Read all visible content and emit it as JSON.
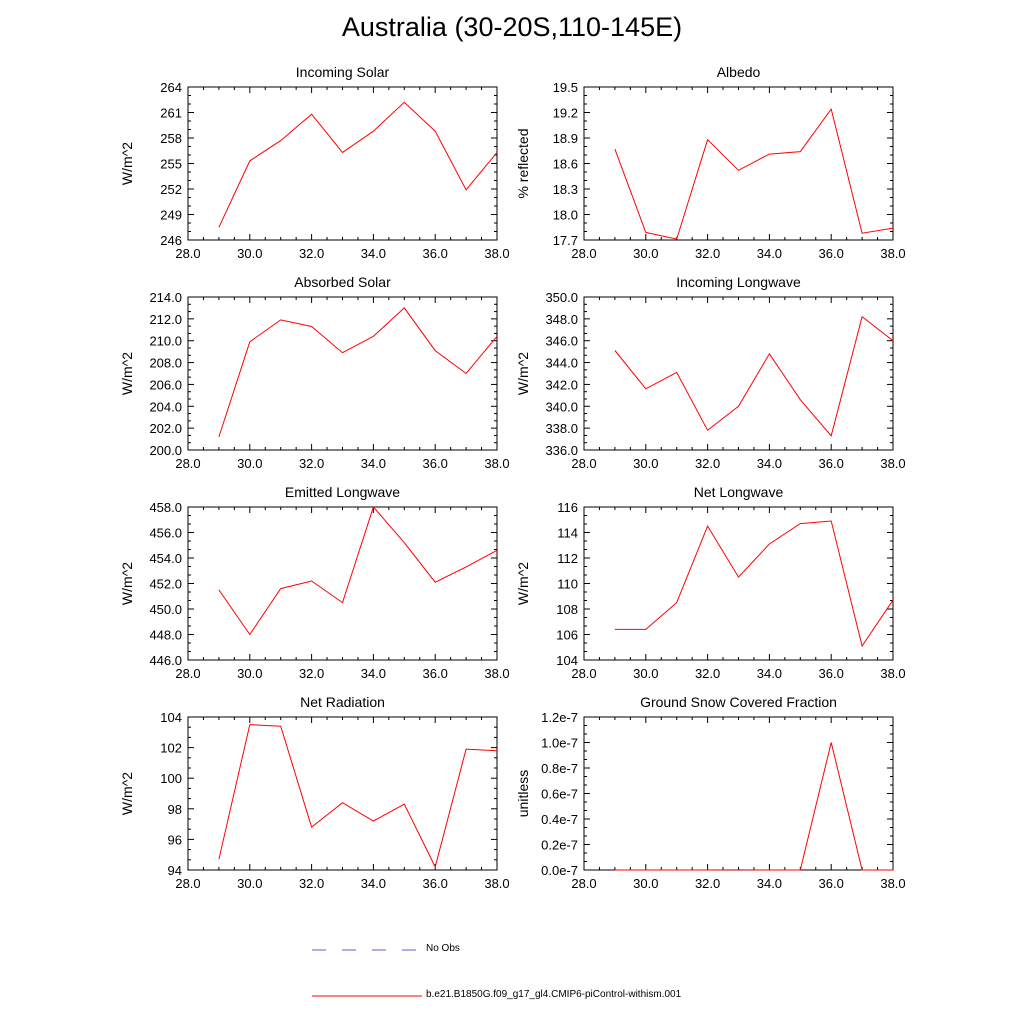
{
  "figure": {
    "title": "Australia (30-20S,110-145E)"
  },
  "legend": [
    {
      "label": "No Obs",
      "color": "#5b5bd6",
      "dash": "dashed"
    },
    {
      "label": "b.e21.B1850G.f09_g17_gl4.CMIP6-piControl-withism.001",
      "color": "#ff0000",
      "dash": "solid"
    }
  ],
  "chart_data": [
    {
      "type": "line",
      "title": "Incoming Solar",
      "ylabel": "W/m^2",
      "xlim": [
        28,
        38
      ],
      "ylim": [
        246,
        264
      ],
      "xticks": [
        "28.0",
        "30.0",
        "32.0",
        "34.0",
        "36.0",
        "38.0"
      ],
      "yticks": [
        "246",
        "249",
        "252",
        "255",
        "258",
        "261",
        "264"
      ],
      "series": [
        {
          "color": "#ff0000",
          "x": [
            29,
            30,
            31,
            32,
            33,
            34,
            35,
            36,
            37,
            38
          ],
          "y": [
            247.5,
            255.3,
            257.7,
            260.8,
            256.3,
            258.8,
            262.2,
            258.8,
            251.9,
            256.3
          ]
        }
      ]
    },
    {
      "type": "line",
      "title": "Albedo",
      "ylabel": "% reflected",
      "xlim": [
        28,
        38
      ],
      "ylim": [
        17.7,
        19.5
      ],
      "xticks": [
        "28.0",
        "30.0",
        "32.0",
        "34.0",
        "36.0",
        "38.0"
      ],
      "yticks": [
        "17.7",
        "18.0",
        "18.3",
        "18.6",
        "18.9",
        "19.2",
        "19.5"
      ],
      "series": [
        {
          "color": "#ff0000",
          "x": [
            29,
            30,
            31,
            32,
            33,
            34,
            35,
            36,
            37,
            38
          ],
          "y": [
            18.77,
            17.79,
            17.71,
            18.88,
            18.52,
            18.71,
            18.74,
            19.24,
            17.78,
            17.84
          ]
        }
      ]
    },
    {
      "type": "line",
      "title": "Absorbed Solar",
      "ylabel": "W/m^2",
      "xlim": [
        28,
        38
      ],
      "ylim": [
        200,
        214
      ],
      "xticks": [
        "28.0",
        "30.0",
        "32.0",
        "34.0",
        "36.0",
        "38.0"
      ],
      "yticks": [
        "200.0",
        "202.0",
        "204.0",
        "206.0",
        "208.0",
        "210.0",
        "212.0",
        "214.0"
      ],
      "series": [
        {
          "color": "#ff0000",
          "x": [
            29,
            30,
            31,
            32,
            33,
            34,
            35,
            36,
            37,
            38
          ],
          "y": [
            201.2,
            209.9,
            211.9,
            211.3,
            208.9,
            210.4,
            213.0,
            209.1,
            207.0,
            210.4
          ]
        }
      ]
    },
    {
      "type": "line",
      "title": "Incoming Longwave",
      "ylabel": "W/m^2",
      "xlim": [
        28,
        38
      ],
      "ylim": [
        336,
        350
      ],
      "xticks": [
        "28.0",
        "30.0",
        "32.0",
        "34.0",
        "36.0",
        "38.0"
      ],
      "yticks": [
        "336.0",
        "338.0",
        "340.0",
        "342.0",
        "344.0",
        "346.0",
        "348.0",
        "350.0"
      ],
      "series": [
        {
          "color": "#ff0000",
          "x": [
            29,
            30,
            31,
            32,
            33,
            34,
            35,
            36,
            37,
            38
          ],
          "y": [
            345.1,
            341.6,
            343.1,
            337.8,
            340.0,
            344.8,
            340.6,
            337.3,
            348.2,
            346.0
          ]
        }
      ]
    },
    {
      "type": "line",
      "title": "Emitted Longwave",
      "ylabel": "W/m^2",
      "xlim": [
        28,
        38
      ],
      "ylim": [
        446,
        458
      ],
      "xticks": [
        "28.0",
        "30.0",
        "32.0",
        "34.0",
        "36.0",
        "38.0"
      ],
      "yticks": [
        "446.0",
        "448.0",
        "450.0",
        "452.0",
        "454.0",
        "456.0",
        "458.0"
      ],
      "series": [
        {
          "color": "#ff0000",
          "x": [
            29,
            30,
            31,
            32,
            33,
            34,
            35,
            36,
            37,
            38
          ],
          "y": [
            451.5,
            448.0,
            451.6,
            452.2,
            450.5,
            458.0,
            455.2,
            452.1,
            453.3,
            454.6
          ]
        }
      ]
    },
    {
      "type": "line",
      "title": "Net Longwave",
      "ylabel": "W/m^2",
      "xlim": [
        28,
        38
      ],
      "ylim": [
        104,
        116
      ],
      "xticks": [
        "28.0",
        "30.0",
        "32.0",
        "34.0",
        "36.0",
        "38.0"
      ],
      "yticks": [
        "104",
        "106",
        "108",
        "110",
        "112",
        "114",
        "116"
      ],
      "series": [
        {
          "color": "#ff0000",
          "x": [
            29,
            30,
            31,
            32,
            33,
            34,
            35,
            36,
            37,
            38
          ],
          "y": [
            106.4,
            106.4,
            108.5,
            114.5,
            110.5,
            113.1,
            114.7,
            114.9,
            105.1,
            108.7
          ]
        }
      ]
    },
    {
      "type": "line",
      "title": "Net Radiation",
      "ylabel": "W/m^2",
      "xlim": [
        28,
        38
      ],
      "ylim": [
        94,
        104
      ],
      "xticks": [
        "28.0",
        "30.0",
        "32.0",
        "34.0",
        "36.0",
        "38.0"
      ],
      "yticks": [
        "94",
        "96",
        "98",
        "100",
        "102",
        "104"
      ],
      "series": [
        {
          "color": "#ff0000",
          "x": [
            29,
            30,
            31,
            32,
            33,
            34,
            35,
            36,
            37,
            38
          ],
          "y": [
            94.7,
            103.5,
            103.4,
            96.8,
            98.4,
            97.2,
            98.3,
            94.2,
            101.9,
            101.8
          ]
        }
      ]
    },
    {
      "type": "line",
      "title": "Ground Snow Covered Fraction",
      "ylabel": "unitless",
      "xlim": [
        28,
        38
      ],
      "ylim": [
        0,
        1.2e-07
      ],
      "xticks": [
        "28.0",
        "30.0",
        "32.0",
        "34.0",
        "36.0",
        "38.0"
      ],
      "yticks": [
        "0.0e-7",
        "0.2e-7",
        "0.4e-7",
        "0.6e-7",
        "0.8e-7",
        "1.0e-7",
        "1.2e-7"
      ],
      "series": [
        {
          "color": "#ff0000",
          "x": [
            29,
            30,
            31,
            32,
            33,
            34,
            35,
            36,
            37,
            38
          ],
          "y": [
            0,
            0,
            0,
            0,
            1e-10,
            0,
            0,
            1e-07,
            0,
            0
          ]
        }
      ]
    }
  ]
}
